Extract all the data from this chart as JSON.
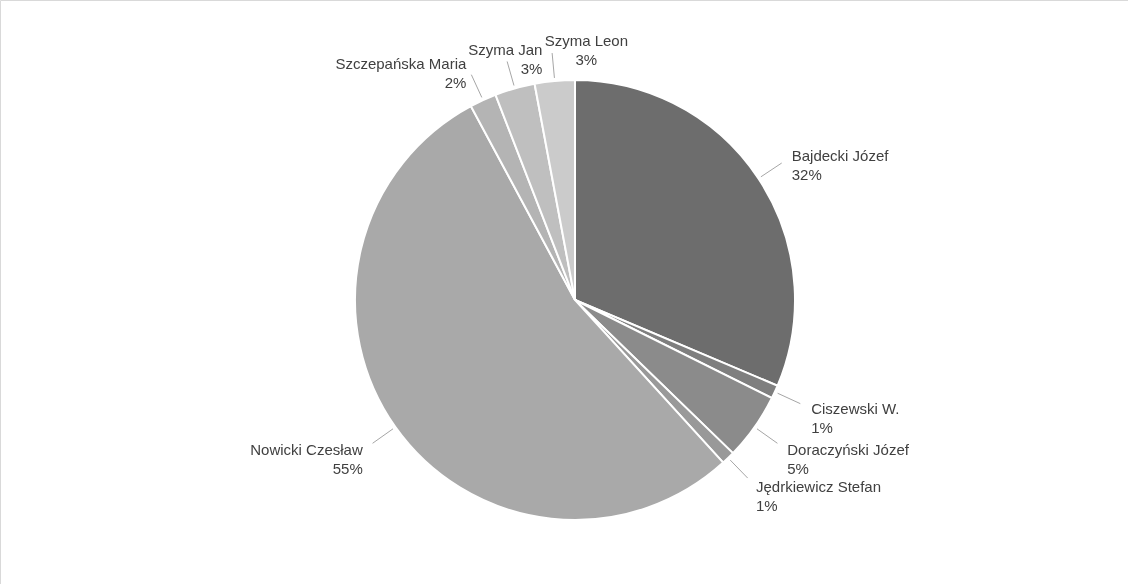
{
  "chart_data": {
    "type": "pie",
    "categories": [
      "Bajdecki Józef",
      "Ciszewski W.",
      "Doraczyński Józef",
      "Jędrkiewicz Stefan",
      "Nowicki Czesław",
      "Szczepańska Maria",
      "Szyma Jan",
      "Szyma Leon"
    ],
    "values": [
      32,
      1,
      5,
      1,
      55,
      2,
      3,
      3
    ],
    "value_labels": [
      "32%",
      "1%",
      "5%",
      "1%",
      "55%",
      "2%",
      "3%",
      "3%"
    ],
    "colors": [
      "#6d6d6d",
      "#7f7f7f",
      "#8b8b8b",
      "#999999",
      "#a9a9a9",
      "#b4b4b4",
      "#bfbfbf",
      "#cbcbcb"
    ]
  }
}
